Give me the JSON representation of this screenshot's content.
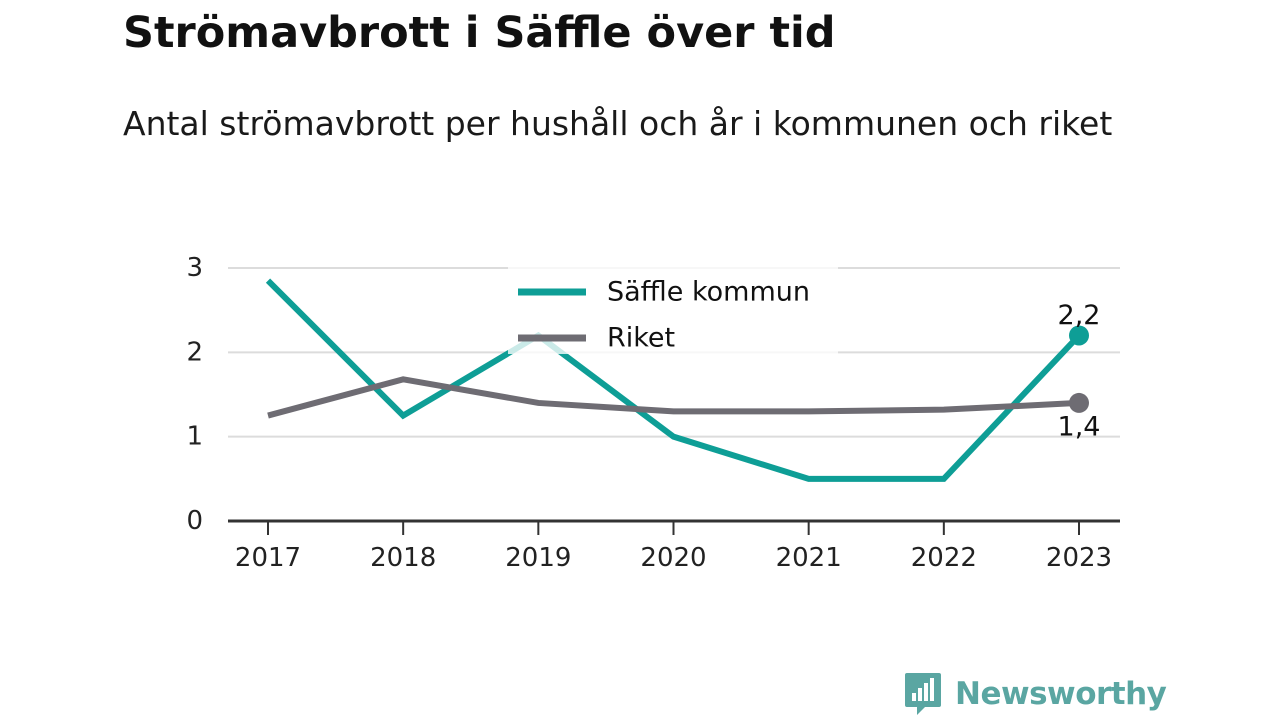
{
  "title": "Strömavbrott i Säffle över tid",
  "subtitle": "Antal strömavbrott per hushåll och år i kommunen och riket",
  "brand": {
    "name": "Newsworthy",
    "logo_icon": "newsworthy-bar-chart-icon"
  },
  "colors": {
    "saffle": "#0e9e96",
    "riket": "#6e6c73",
    "grid": "#dcdcdc",
    "axis": "#333333"
  },
  "chart_data": {
    "type": "line",
    "x": [
      "2017",
      "2018",
      "2019",
      "2020",
      "2021",
      "2022",
      "2023"
    ],
    "ylim": [
      0,
      3
    ],
    "yticks": [
      "0",
      "1",
      "2",
      "3"
    ],
    "grid": true,
    "legend": "top-center",
    "series": [
      {
        "name": "Säffle kommun",
        "values": [
          2.85,
          1.25,
          2.2,
          1.0,
          0.5,
          0.5,
          2.2
        ],
        "end_label": "2,2"
      },
      {
        "name": "Riket",
        "values": [
          1.25,
          1.68,
          1.4,
          1.3,
          1.3,
          1.32,
          1.4
        ],
        "end_label": "1,4"
      }
    ]
  }
}
